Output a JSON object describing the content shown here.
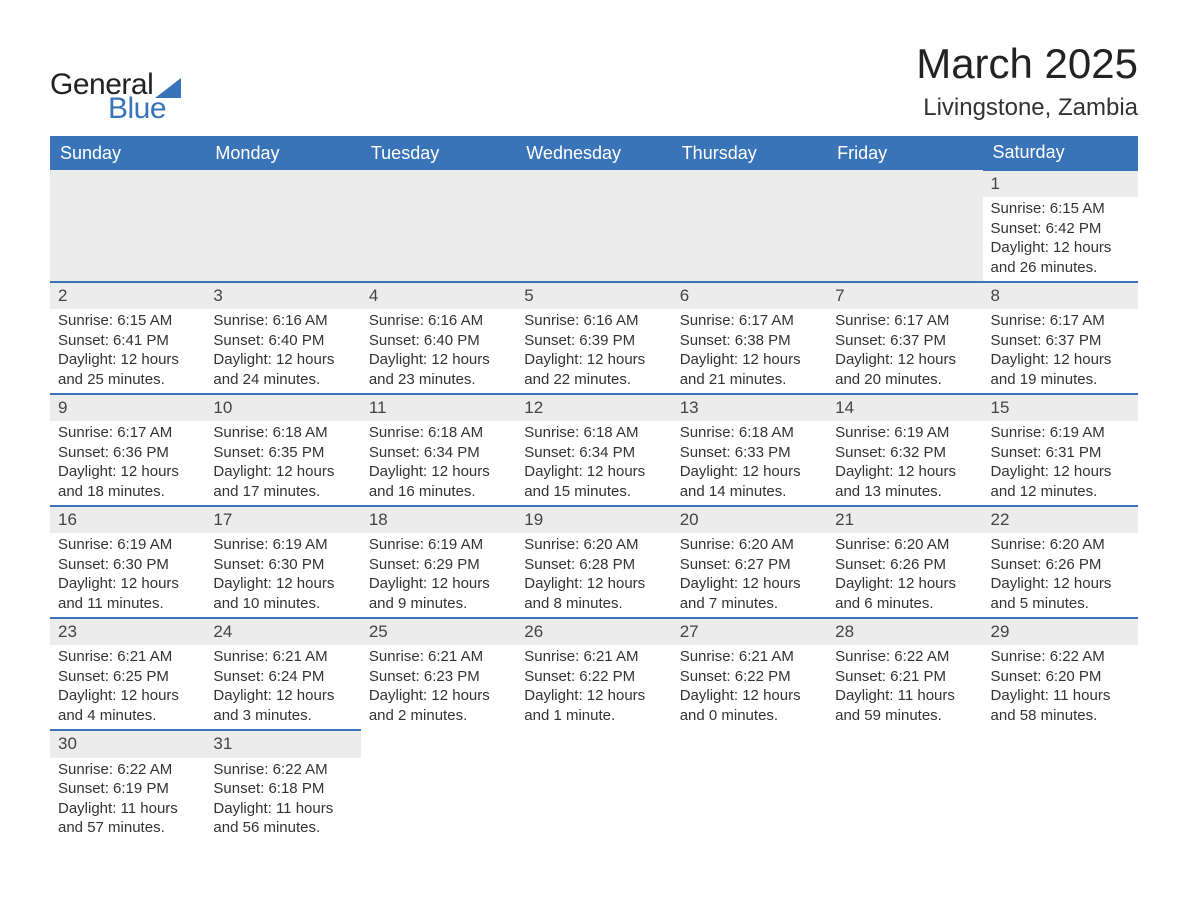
{
  "brand": {
    "text1": "General",
    "text2": "Blue"
  },
  "title": "March 2025",
  "location": "Livingstone, Zambia",
  "colors": {
    "brand_blue": "#3a74b8",
    "header_bg": "#3a74b8",
    "daynum_bg": "#ececec",
    "text": "#333333",
    "background": "#ffffff"
  },
  "typography": {
    "title_fontsize": 42,
    "location_fontsize": 24,
    "header_fontsize": 18,
    "cell_fontsize": 15,
    "logo_fontsize": 30
  },
  "day_labels": [
    "Sunday",
    "Monday",
    "Tuesday",
    "Wednesday",
    "Thursday",
    "Friday",
    "Saturday"
  ],
  "weeks": [
    [
      null,
      null,
      null,
      null,
      null,
      null,
      {
        "n": "1",
        "sr": "Sunrise: 6:15 AM",
        "ss": "Sunset: 6:42 PM",
        "d1": "Daylight: 12 hours",
        "d2": "and 26 minutes."
      }
    ],
    [
      {
        "n": "2",
        "sr": "Sunrise: 6:15 AM",
        "ss": "Sunset: 6:41 PM",
        "d1": "Daylight: 12 hours",
        "d2": "and 25 minutes."
      },
      {
        "n": "3",
        "sr": "Sunrise: 6:16 AM",
        "ss": "Sunset: 6:40 PM",
        "d1": "Daylight: 12 hours",
        "d2": "and 24 minutes."
      },
      {
        "n": "4",
        "sr": "Sunrise: 6:16 AM",
        "ss": "Sunset: 6:40 PM",
        "d1": "Daylight: 12 hours",
        "d2": "and 23 minutes."
      },
      {
        "n": "5",
        "sr": "Sunrise: 6:16 AM",
        "ss": "Sunset: 6:39 PM",
        "d1": "Daylight: 12 hours",
        "d2": "and 22 minutes."
      },
      {
        "n": "6",
        "sr": "Sunrise: 6:17 AM",
        "ss": "Sunset: 6:38 PM",
        "d1": "Daylight: 12 hours",
        "d2": "and 21 minutes."
      },
      {
        "n": "7",
        "sr": "Sunrise: 6:17 AM",
        "ss": "Sunset: 6:37 PM",
        "d1": "Daylight: 12 hours",
        "d2": "and 20 minutes."
      },
      {
        "n": "8",
        "sr": "Sunrise: 6:17 AM",
        "ss": "Sunset: 6:37 PM",
        "d1": "Daylight: 12 hours",
        "d2": "and 19 minutes."
      }
    ],
    [
      {
        "n": "9",
        "sr": "Sunrise: 6:17 AM",
        "ss": "Sunset: 6:36 PM",
        "d1": "Daylight: 12 hours",
        "d2": "and 18 minutes."
      },
      {
        "n": "10",
        "sr": "Sunrise: 6:18 AM",
        "ss": "Sunset: 6:35 PM",
        "d1": "Daylight: 12 hours",
        "d2": "and 17 minutes."
      },
      {
        "n": "11",
        "sr": "Sunrise: 6:18 AM",
        "ss": "Sunset: 6:34 PM",
        "d1": "Daylight: 12 hours",
        "d2": "and 16 minutes."
      },
      {
        "n": "12",
        "sr": "Sunrise: 6:18 AM",
        "ss": "Sunset: 6:34 PM",
        "d1": "Daylight: 12 hours",
        "d2": "and 15 minutes."
      },
      {
        "n": "13",
        "sr": "Sunrise: 6:18 AM",
        "ss": "Sunset: 6:33 PM",
        "d1": "Daylight: 12 hours",
        "d2": "and 14 minutes."
      },
      {
        "n": "14",
        "sr": "Sunrise: 6:19 AM",
        "ss": "Sunset: 6:32 PM",
        "d1": "Daylight: 12 hours",
        "d2": "and 13 minutes."
      },
      {
        "n": "15",
        "sr": "Sunrise: 6:19 AM",
        "ss": "Sunset: 6:31 PM",
        "d1": "Daylight: 12 hours",
        "d2": "and 12 minutes."
      }
    ],
    [
      {
        "n": "16",
        "sr": "Sunrise: 6:19 AM",
        "ss": "Sunset: 6:30 PM",
        "d1": "Daylight: 12 hours",
        "d2": "and 11 minutes."
      },
      {
        "n": "17",
        "sr": "Sunrise: 6:19 AM",
        "ss": "Sunset: 6:30 PM",
        "d1": "Daylight: 12 hours",
        "d2": "and 10 minutes."
      },
      {
        "n": "18",
        "sr": "Sunrise: 6:19 AM",
        "ss": "Sunset: 6:29 PM",
        "d1": "Daylight: 12 hours",
        "d2": "and 9 minutes."
      },
      {
        "n": "19",
        "sr": "Sunrise: 6:20 AM",
        "ss": "Sunset: 6:28 PM",
        "d1": "Daylight: 12 hours",
        "d2": "and 8 minutes."
      },
      {
        "n": "20",
        "sr": "Sunrise: 6:20 AM",
        "ss": "Sunset: 6:27 PM",
        "d1": "Daylight: 12 hours",
        "d2": "and 7 minutes."
      },
      {
        "n": "21",
        "sr": "Sunrise: 6:20 AM",
        "ss": "Sunset: 6:26 PM",
        "d1": "Daylight: 12 hours",
        "d2": "and 6 minutes."
      },
      {
        "n": "22",
        "sr": "Sunrise: 6:20 AM",
        "ss": "Sunset: 6:26 PM",
        "d1": "Daylight: 12 hours",
        "d2": "and 5 minutes."
      }
    ],
    [
      {
        "n": "23",
        "sr": "Sunrise: 6:21 AM",
        "ss": "Sunset: 6:25 PM",
        "d1": "Daylight: 12 hours",
        "d2": "and 4 minutes."
      },
      {
        "n": "24",
        "sr": "Sunrise: 6:21 AM",
        "ss": "Sunset: 6:24 PM",
        "d1": "Daylight: 12 hours",
        "d2": "and 3 minutes."
      },
      {
        "n": "25",
        "sr": "Sunrise: 6:21 AM",
        "ss": "Sunset: 6:23 PM",
        "d1": "Daylight: 12 hours",
        "d2": "and 2 minutes."
      },
      {
        "n": "26",
        "sr": "Sunrise: 6:21 AM",
        "ss": "Sunset: 6:22 PM",
        "d1": "Daylight: 12 hours",
        "d2": "and 1 minute."
      },
      {
        "n": "27",
        "sr": "Sunrise: 6:21 AM",
        "ss": "Sunset: 6:22 PM",
        "d1": "Daylight: 12 hours",
        "d2": "and 0 minutes."
      },
      {
        "n": "28",
        "sr": "Sunrise: 6:22 AM",
        "ss": "Sunset: 6:21 PM",
        "d1": "Daylight: 11 hours",
        "d2": "and 59 minutes."
      },
      {
        "n": "29",
        "sr": "Sunrise: 6:22 AM",
        "ss": "Sunset: 6:20 PM",
        "d1": "Daylight: 11 hours",
        "d2": "and 58 minutes."
      }
    ],
    [
      {
        "n": "30",
        "sr": "Sunrise: 6:22 AM",
        "ss": "Sunset: 6:19 PM",
        "d1": "Daylight: 11 hours",
        "d2": "and 57 minutes."
      },
      {
        "n": "31",
        "sr": "Sunrise: 6:22 AM",
        "ss": "Sunset: 6:18 PM",
        "d1": "Daylight: 11 hours",
        "d2": "and 56 minutes."
      },
      null,
      null,
      null,
      null,
      null
    ]
  ]
}
